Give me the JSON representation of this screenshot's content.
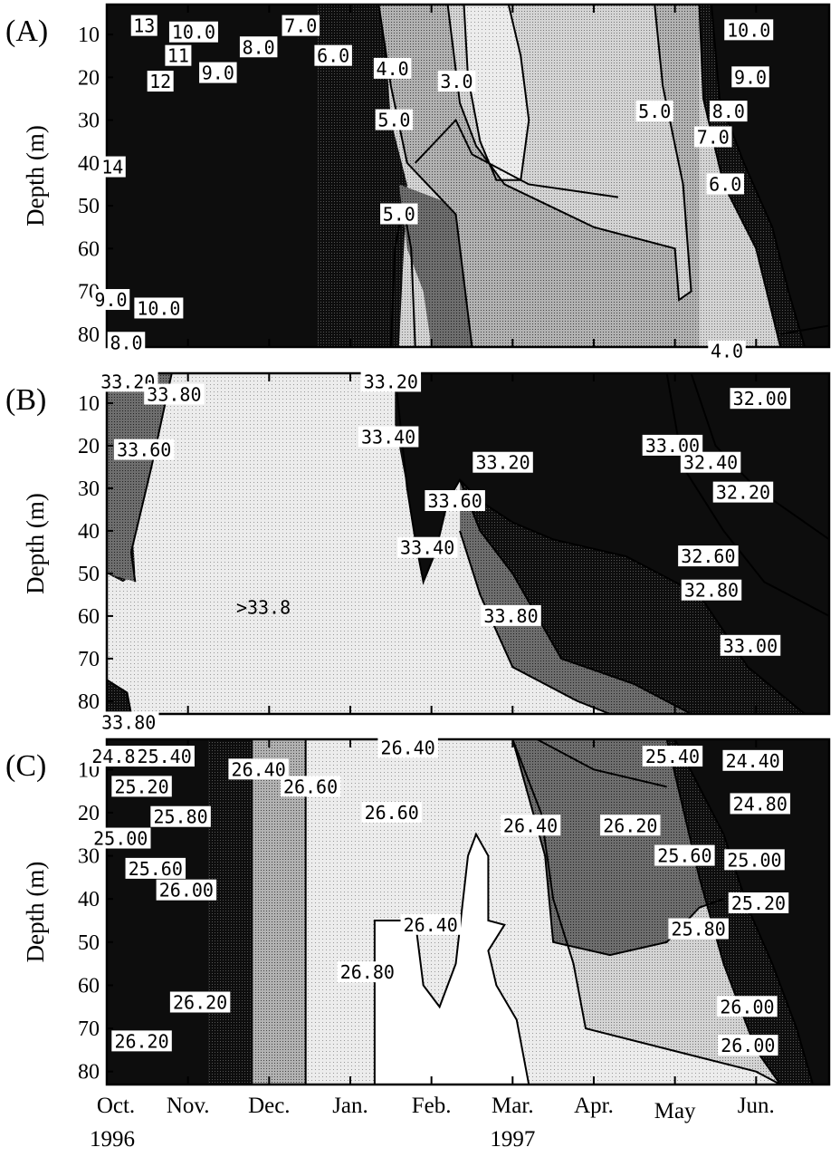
{
  "colors": {
    "darkest": "#0d0d0d",
    "dark": "#333333",
    "mid": "#6e6e6e",
    "light": "#b2b2b2",
    "lighter": "#d4d4d4",
    "lightest": "#ececec",
    "white": "#ffffff",
    "ink": "#000000"
  },
  "chart_data": [
    {
      "type": "heatmap",
      "panel": "(A)",
      "ylabel": "Depth (m)",
      "yticks": [
        "10",
        "20",
        "30",
        "40",
        "50",
        "60",
        "70",
        "80"
      ],
      "ylim": [
        83,
        3
      ],
      "xlim": [
        0,
        8.9
      ],
      "contour_labels": [
        {
          "text": "13",
          "t": 0.46,
          "d": 8
        },
        {
          "text": "10.0",
          "t": 1.07,
          "d": 9.5
        },
        {
          "text": "11",
          "t": 0.88,
          "d": 15
        },
        {
          "text": "12",
          "t": 0.66,
          "d": 21
        },
        {
          "text": "9.0",
          "t": 1.37,
          "d": 19
        },
        {
          "text": "8.0",
          "t": 1.87,
          "d": 13
        },
        {
          "text": "7.0",
          "t": 2.39,
          "d": 8
        },
        {
          "text": "6.0",
          "t": 2.79,
          "d": 15
        },
        {
          "text": "4.0",
          "t": 3.52,
          "d": 18
        },
        {
          "text": "3.0",
          "t": 4.31,
          "d": 21
        },
        {
          "text": "5.0",
          "t": 3.54,
          "d": 30
        },
        {
          "text": "5.0",
          "t": 3.6,
          "d": 52
        },
        {
          "text": "5.0",
          "t": 6.75,
          "d": 28
        },
        {
          "text": "7.0",
          "t": 7.47,
          "d": 34
        },
        {
          "text": "8.0",
          "t": 7.66,
          "d": 28
        },
        {
          "text": "9.0",
          "t": 7.93,
          "d": 20
        },
        {
          "text": "10.0",
          "t": 7.91,
          "d": 9
        },
        {
          "text": "6.0",
          "t": 7.62,
          "d": 45
        },
        {
          "text": "14",
          "t": 0.07,
          "d": 41
        },
        {
          "text": "9.0",
          "t": 0.05,
          "d": 72
        },
        {
          "text": "10.0",
          "t": 0.64,
          "d": 74
        },
        {
          "text": "8.0",
          "t": 0.24,
          "d": 82
        },
        {
          "text": "4.0",
          "t": 7.64,
          "d": 84
        }
      ]
    },
    {
      "type": "heatmap",
      "panel": "(B)",
      "ylabel": "Depth (m)",
      "yticks": [
        "10",
        "20",
        "30",
        "40",
        "50",
        "60",
        "70",
        "80"
      ],
      "ylim": [
        83,
        3
      ],
      "xlim": [
        0,
        8.9
      ],
      "contour_labels": [
        {
          "text": "33.20",
          "t": 0.26,
          "d": 5
        },
        {
          "text": "33.80",
          "t": 0.83,
          "d": 8
        },
        {
          "text": "33.60",
          "t": 0.46,
          "d": 21
        },
        {
          "text": ">33.8",
          "t": 1.93,
          "d": 58
        },
        {
          "text": "33.20",
          "t": 3.5,
          "d": 5
        },
        {
          "text": "33.40",
          "t": 3.47,
          "d": 18
        },
        {
          "text": "33.20",
          "t": 4.88,
          "d": 24
        },
        {
          "text": "33.60",
          "t": 4.29,
          "d": 33
        },
        {
          "text": "33.40",
          "t": 3.95,
          "d": 44
        },
        {
          "text": "33.80",
          "t": 4.98,
          "d": 60
        },
        {
          "text": "33.00",
          "t": 6.97,
          "d": 20
        },
        {
          "text": "32.00",
          "t": 8.05,
          "d": 9
        },
        {
          "text": "32.40",
          "t": 7.44,
          "d": 24
        },
        {
          "text": "32.20",
          "t": 7.84,
          "d": 31
        },
        {
          "text": "32.60",
          "t": 7.41,
          "d": 46
        },
        {
          "text": "32.80",
          "t": 7.45,
          "d": 54
        },
        {
          "text": "33.00",
          "t": 7.93,
          "d": 67
        },
        {
          "text": "33.80",
          "t": 0.27,
          "d": 85
        }
      ]
    },
    {
      "type": "heatmap",
      "panel": "(C)",
      "ylabel": "Depth (m)",
      "yticks": [
        "10",
        "20",
        "30",
        "40",
        "50",
        "60",
        "70",
        "80"
      ],
      "ylim": [
        83,
        3
      ],
      "xlim": [
        0,
        8.9
      ],
      "xticks": [
        "Oct.",
        "Nov.",
        "Dec.",
        "Jan.",
        "Feb.",
        "Mar.",
        "Apr.",
        "May",
        "Jun."
      ],
      "xyears": [
        "1996",
        "1997"
      ],
      "contour_labels": [
        {
          "text": "24.80",
          "t": 0.15,
          "d": 7
        },
        {
          "text": "25.40",
          "t": 0.71,
          "d": 7
        },
        {
          "text": "25.20",
          "t": 0.43,
          "d": 14
        },
        {
          "text": "25.80",
          "t": 0.91,
          "d": 21
        },
        {
          "text": "25.00",
          "t": 0.17,
          "d": 26
        },
        {
          "text": "25.60",
          "t": 0.6,
          "d": 33
        },
        {
          "text": "26.00",
          "t": 0.98,
          "d": 38
        },
        {
          "text": "26.40",
          "t": 1.87,
          "d": 10
        },
        {
          "text": "26.60",
          "t": 2.51,
          "d": 14
        },
        {
          "text": "26.40",
          "t": 3.71,
          "d": 5
        },
        {
          "text": "26.60",
          "t": 3.51,
          "d": 20
        },
        {
          "text": "26.40",
          "t": 3.99,
          "d": 46
        },
        {
          "text": "26.80",
          "t": 3.21,
          "d": 57
        },
        {
          "text": "26.40",
          "t": 5.22,
          "d": 23
        },
        {
          "text": "26.20",
          "t": 6.45,
          "d": 23
        },
        {
          "text": "25.40",
          "t": 6.97,
          "d": 7
        },
        {
          "text": "25.60",
          "t": 7.12,
          "d": 30
        },
        {
          "text": "25.80",
          "t": 7.29,
          "d": 47
        },
        {
          "text": "24.40",
          "t": 7.96,
          "d": 8
        },
        {
          "text": "24.80",
          "t": 8.05,
          "d": 18
        },
        {
          "text": "25.00",
          "t": 7.98,
          "d": 31
        },
        {
          "text": "25.20",
          "t": 8.03,
          "d": 41
        },
        {
          "text": "26.00",
          "t": 7.89,
          "d": 65
        },
        {
          "text": "26.00",
          "t": 7.9,
          "d": 74
        },
        {
          "text": "26.20",
          "t": 1.15,
          "d": 64
        },
        {
          "text": "26.20",
          "t": 0.43,
          "d": 73
        }
      ]
    }
  ]
}
